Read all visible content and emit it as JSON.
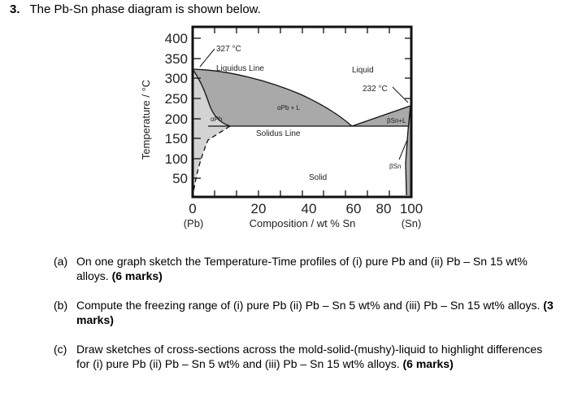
{
  "question": {
    "number": "3.",
    "title": "The Pb-Sn phase diagram is shown below."
  },
  "diagram": {
    "y_axis_label": "Temperature / °C",
    "x_axis_label": "Composition / wt % Sn",
    "y_ticks": [
      "400",
      "350",
      "300",
      "250",
      "200",
      "150",
      "100",
      "50",
      "0"
    ],
    "x_ticks": [
      "20",
      "40",
      "60",
      "80",
      "100"
    ],
    "x_end_labels": {
      "left": "(Pb)",
      "right": "(Sn)"
    },
    "annotations": {
      "pb_melt": "327 °C",
      "liquidus": "Liquidus Line",
      "liquid": "Liquid",
      "sn_melt": "232 °C",
      "alpha_pb_l": "αPb + L",
      "alpha_pb": "αPb",
      "beta_sn_l": "βSn+L",
      "solidus": "Solidus Line",
      "beta_sn": "βSn",
      "solid": "Solid"
    },
    "colors": {
      "two_phase": "#a9a9a9",
      "alpha_region": "#d3d3d3",
      "frame": "#111111"
    }
  },
  "parts": [
    {
      "label": "(a)",
      "text": "On one graph sketch the Temperature-Time profiles of (i) pure Pb and (ii) Pb – Sn 15 wt% alloys.",
      "marks": "(6 marks)"
    },
    {
      "label": "(b)",
      "text": "Compute the freezing range of (i) pure Pb (ii) Pb – Sn 5 wt% and (iii) Pb – Sn 15 wt% alloys.",
      "marks": "(3 marks)"
    },
    {
      "label": "(c)",
      "text": "Draw sketches of cross-sections across the mold-solid-(mushy)-liquid to highlight differences for (i) pure Pb (ii) Pb – Sn 5 wt% and (iii) Pb – Sn 15 wt% alloys.",
      "marks": "(6 marks)"
    }
  ]
}
